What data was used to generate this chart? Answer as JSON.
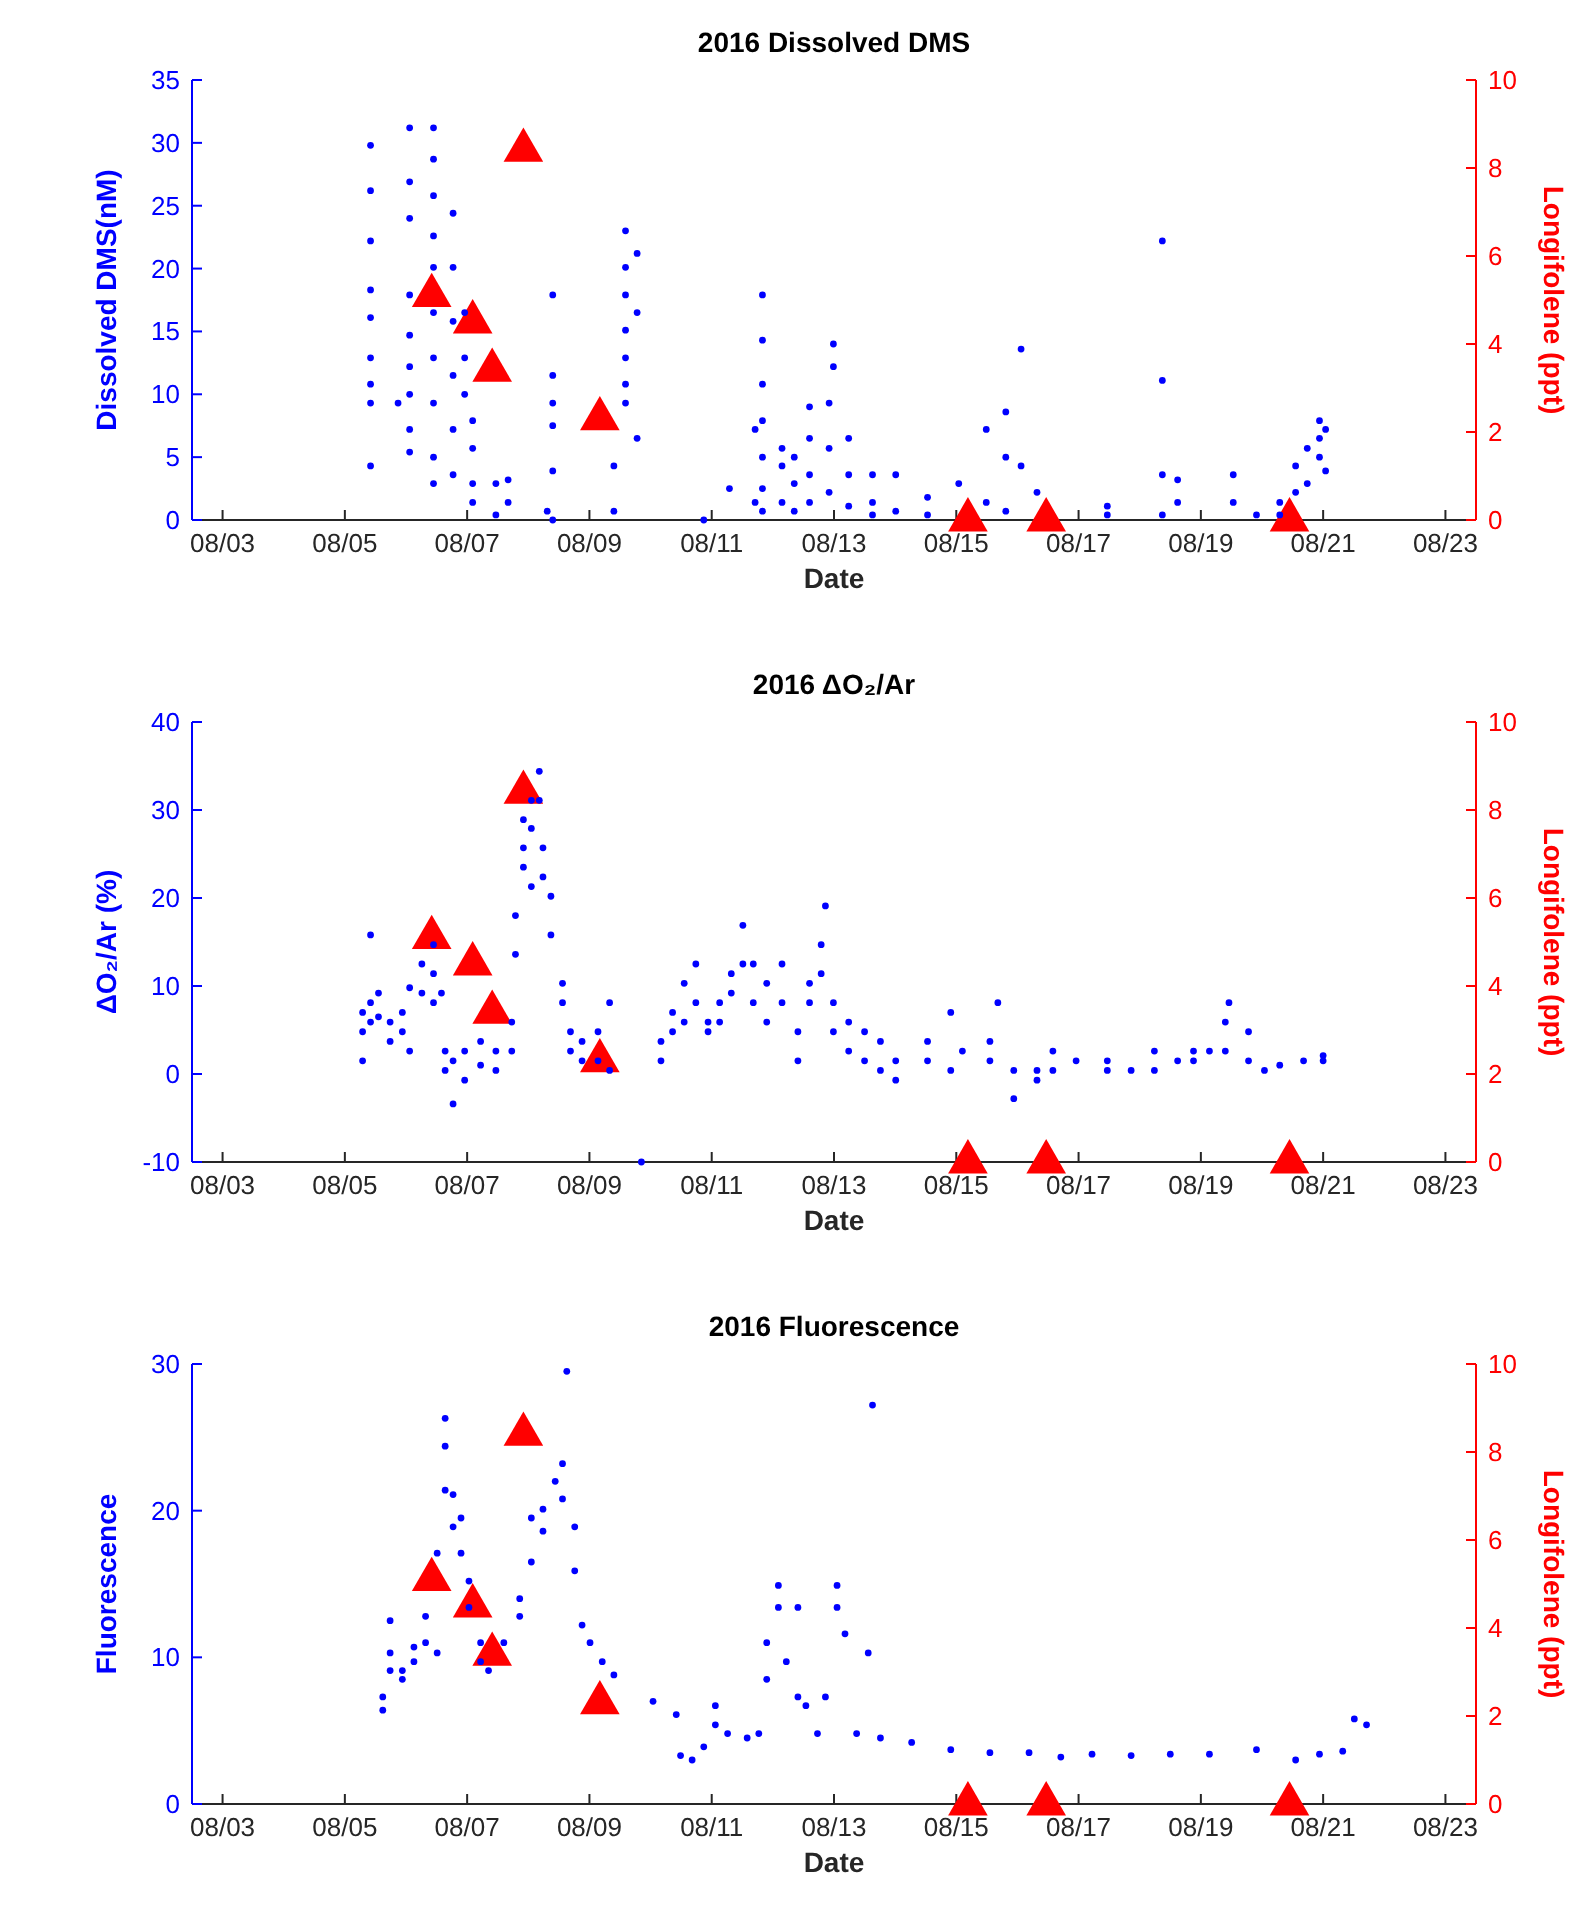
{
  "chart_data": [
    {
      "type": "scatter",
      "title": "2016 Dissolved DMS",
      "xlabel": "Date",
      "ylabel": "Dissolved DMS(nM)",
      "y2label": "Longifolene (ppt)",
      "xlim": [
        "2016-08-02T12:00",
        "2016-08-23T12:00"
      ],
      "xticks": [
        {
          "value": "2016-08-03",
          "label": "08/03"
        },
        {
          "value": "2016-08-05",
          "label": "08/05"
        },
        {
          "value": "2016-08-07",
          "label": "08/07"
        },
        {
          "value": "2016-08-09",
          "label": "08/09"
        },
        {
          "value": "2016-08-11",
          "label": "08/11"
        },
        {
          "value": "2016-08-13",
          "label": "08/13"
        },
        {
          "value": "2016-08-15",
          "label": "08/15"
        },
        {
          "value": "2016-08-17",
          "label": "08/17"
        },
        {
          "value": "2016-08-19",
          "label": "08/19"
        },
        {
          "value": "2016-08-21",
          "label": "08/21"
        },
        {
          "value": "2016-08-23",
          "label": "08/23"
        }
      ],
      "ylim": [
        0,
        35
      ],
      "yticks": [
        0,
        5,
        10,
        15,
        20,
        25,
        30,
        35
      ],
      "y2lim": [
        0,
        10
      ],
      "y2ticks": [
        0,
        2,
        4,
        6,
        8,
        10
      ],
      "series": [
        {
          "color": "#0000ff",
          "marker": "circle",
          "x": [
            "2016-08-05T10:05",
            "2016-08-05T10:05",
            "2016-08-05T10:05",
            "2016-08-05T10:05",
            "2016-08-05T10:05",
            "2016-08-05T10:05",
            "2016-08-05T10:05",
            "2016-08-05T10:05",
            "2016-08-05T10:05",
            "2016-08-05T20:53",
            "2016-08-06T01:26",
            "2016-08-06T01:26",
            "2016-08-06T01:26",
            "2016-08-06T01:26",
            "2016-08-06T01:26",
            "2016-08-06T01:26",
            "2016-08-06T01:26",
            "2016-08-06T01:26",
            "2016-08-06T01:26",
            "2016-08-06T10:48",
            "2016-08-06T10:48",
            "2016-08-06T10:48",
            "2016-08-06T10:48",
            "2016-08-06T10:48",
            "2016-08-06T10:48",
            "2016-08-06T10:48",
            "2016-08-06T10:48",
            "2016-08-06T10:48",
            "2016-08-06T10:48",
            "2016-08-06T18:29",
            "2016-08-06T18:29",
            "2016-08-06T18:29",
            "2016-08-06T18:29",
            "2016-08-06T18:29",
            "2016-08-06T18:29",
            "2016-08-06T23:02",
            "2016-08-06T23:02",
            "2016-08-06T23:02",
            "2016-08-07T02:10",
            "2016-08-07T02:10",
            "2016-08-07T02:10",
            "2016-08-07T02:10",
            "2016-08-07T11:17",
            "2016-08-07T11:17",
            "2016-08-07T16:05",
            "2016-08-07T16:05",
            "2016-08-08T07:26",
            "2016-08-08T09:36",
            "2016-08-08T09:36",
            "2016-08-08T09:36",
            "2016-08-08T09:36",
            "2016-08-08T09:36",
            "2016-08-08T09:36",
            "2016-08-09T09:36",
            "2016-08-09T09:36",
            "2016-08-09T14:10",
            "2016-08-09T14:10",
            "2016-08-09T14:10",
            "2016-08-09T14:10",
            "2016-08-09T14:10",
            "2016-08-09T14:10",
            "2016-08-09T14:10",
            "2016-08-09T18:43",
            "2016-08-09T18:43",
            "2016-08-09T18:43",
            "2016-08-10T20:53",
            "2016-08-11T06:58",
            "2016-08-11T17:02",
            "2016-08-11T17:02",
            "2016-08-11T19:55",
            "2016-08-11T19:55",
            "2016-08-11T19:55",
            "2016-08-11T19:55",
            "2016-08-11T19:55",
            "2016-08-11T19:55",
            "2016-08-11T19:55",
            "2016-08-12T03:36",
            "2016-08-12T03:36",
            "2016-08-12T03:36",
            "2016-08-12T08:24",
            "2016-08-12T08:24",
            "2016-08-12T08:24",
            "2016-08-12T14:24",
            "2016-08-12T14:24",
            "2016-08-12T14:24",
            "2016-08-12T14:24",
            "2016-08-12T22:05",
            "2016-08-12T22:05",
            "2016-08-12T22:05",
            "2016-08-12T23:46",
            "2016-08-12T23:46",
            "2016-08-13T05:46",
            "2016-08-13T05:46",
            "2016-08-13T05:46",
            "2016-08-13T15:07",
            "2016-08-13T15:07",
            "2016-08-13T15:07",
            "2016-08-14T00:14",
            "2016-08-14T00:14",
            "2016-08-14T12:43",
            "2016-08-14T12:43",
            "2016-08-15T00:58",
            "2016-08-15T11:46",
            "2016-08-15T11:46",
            "2016-08-15T19:26",
            "2016-08-15T19:26",
            "2016-08-15T19:26",
            "2016-08-16T01:26",
            "2016-08-16T01:26",
            "2016-08-16T07:41",
            "2016-08-17T11:17",
            "2016-08-17T11:17",
            "2016-08-18T08:53",
            "2016-08-18T08:53",
            "2016-08-18T08:53",
            "2016-08-18T08:53",
            "2016-08-18T14:53",
            "2016-08-18T14:53",
            "2016-08-19T12:43",
            "2016-08-19T12:43",
            "2016-08-19T21:50",
            "2016-08-20T06:58",
            "2016-08-20T06:58",
            "2016-08-20T13:12",
            "2016-08-20T13:12",
            "2016-08-20T17:46",
            "2016-08-20T17:46",
            "2016-08-20T22:34",
            "2016-08-20T22:34",
            "2016-08-20T22:34",
            "2016-08-21T00:58",
            "2016-08-21T00:58"
          ],
          "values": [
            29.8,
            26.2,
            22.2,
            18.3,
            16.1,
            12.9,
            10.8,
            9.3,
            4.3,
            9.3,
            31.2,
            26.9,
            24.0,
            17.9,
            14.7,
            12.2,
            10.0,
            7.2,
            5.4,
            31.2,
            28.7,
            25.8,
            22.6,
            20.1,
            16.5,
            12.9,
            9.3,
            5.0,
            2.9,
            24.4,
            20.1,
            15.8,
            11.5,
            7.2,
            3.6,
            16.5,
            12.9,
            10.0,
            7.9,
            5.7,
            2.9,
            1.4,
            2.9,
            0.4,
            3.2,
            1.4,
            0.7,
            17.9,
            11.5,
            9.3,
            7.5,
            3.9,
            0,
            4.3,
            0.7,
            23.0,
            20.1,
            17.9,
            15.1,
            12.9,
            10.8,
            9.3,
            21.2,
            16.5,
            6.5,
            0,
            2.5,
            7.2,
            1.4,
            17.9,
            14.3,
            10.8,
            7.9,
            5.0,
            2.5,
            0.7,
            5.7,
            4.3,
            1.4,
            5.0,
            2.9,
            0.7,
            9.0,
            6.5,
            3.6,
            1.4,
            9.3,
            5.7,
            2.2,
            14.0,
            12.2,
            6.5,
            3.6,
            1.1,
            3.6,
            1.4,
            0.4,
            3.6,
            0.7,
            1.8,
            0.4,
            2.9,
            7.2,
            1.4,
            8.6,
            5.0,
            0.7,
            13.6,
            4.3,
            2.2,
            1.1,
            0.4,
            22.2,
            11.1,
            3.6,
            0.4,
            3.2,
            1.4,
            3.6,
            1.4,
            0.4,
            1.4,
            0.4,
            4.3,
            2.2,
            5.7,
            2.9,
            7.9,
            6.5,
            5.0,
            7.2,
            3.9
          ]
        },
        {
          "color": "#ff0000",
          "marker": "triangle",
          "axis": "y2",
          "x": [
            "2016-08-06T10:05",
            "2016-08-07T02:10",
            "2016-08-07T09:50",
            "2016-08-07T22:05",
            "2016-08-09T04:05",
            "2016-08-15T04:34",
            "2016-08-16T11:17",
            "2016-08-20T10:48"
          ],
          "values": [
            5.1,
            4.5,
            3.4,
            8.4,
            2.3,
            0,
            0,
            0
          ]
        }
      ]
    },
    {
      "type": "scatter",
      "title": "2016 ΔO₂/Ar",
      "xlabel": "Date",
      "ylabel": "ΔO₂/Ar (%)",
      "y2label": "Longifolene (ppt)",
      "xlim": [
        "2016-08-02T12:00",
        "2016-08-23T12:00"
      ],
      "xticks": [
        {
          "value": "2016-08-03",
          "label": "08/03"
        },
        {
          "value": "2016-08-05",
          "label": "08/05"
        },
        {
          "value": "2016-08-07",
          "label": "08/07"
        },
        {
          "value": "2016-08-09",
          "label": "08/09"
        },
        {
          "value": "2016-08-11",
          "label": "08/11"
        },
        {
          "value": "2016-08-13",
          "label": "08/13"
        },
        {
          "value": "2016-08-15",
          "label": "08/15"
        },
        {
          "value": "2016-08-17",
          "label": "08/17"
        },
        {
          "value": "2016-08-19",
          "label": "08/19"
        },
        {
          "value": "2016-08-21",
          "label": "08/21"
        },
        {
          "value": "2016-08-23",
          "label": "08/23"
        }
      ],
      "ylim": [
        -10,
        40
      ],
      "yticks": [
        -10,
        0,
        10,
        20,
        30,
        40
      ],
      "y2lim": [
        0,
        10
      ],
      "y2ticks": [
        0,
        2,
        4,
        6,
        8,
        10
      ],
      "series": [
        {
          "color": "#0000ff",
          "marker": "circle",
          "x": [
            "2016-08-05T06:58",
            "2016-08-05T06:58",
            "2016-08-05T06:58",
            "2016-08-05T10:05",
            "2016-08-05T10:05",
            "2016-08-05T10:05",
            "2016-08-05T13:12",
            "2016-08-05T13:12",
            "2016-08-05T17:46",
            "2016-08-05T17:46",
            "2016-08-05T22:34",
            "2016-08-05T22:34",
            "2016-08-06T01:26",
            "2016-08-06T01:26",
            "2016-08-06T06:14",
            "2016-08-06T06:14",
            "2016-08-06T10:48",
            "2016-08-06T10:48",
            "2016-08-06T10:48",
            "2016-08-06T13:55",
            "2016-08-06T15:22",
            "2016-08-06T15:22",
            "2016-08-06T18:29",
            "2016-08-06T18:29",
            "2016-08-06T23:02",
            "2016-08-06T23:02",
            "2016-08-07T05:17",
            "2016-08-07T05:17",
            "2016-08-07T11:17",
            "2016-08-07T11:17",
            "2016-08-07T17:31",
            "2016-08-07T17:31",
            "2016-08-07T18:58",
            "2016-08-07T18:58",
            "2016-08-07T22:05",
            "2016-08-07T22:05",
            "2016-08-07T22:05",
            "2016-08-08T01:12",
            "2016-08-08T01:12",
            "2016-08-08T01:12",
            "2016-08-08T04:19",
            "2016-08-08T04:19",
            "2016-08-08T05:46",
            "2016-08-08T05:46",
            "2016-08-08T08:53",
            "2016-08-08T08:53",
            "2016-08-08T13:26",
            "2016-08-08T13:26",
            "2016-08-08T16:34",
            "2016-08-08T16:34",
            "2016-08-08T21:07",
            "2016-08-08T21:07",
            "2016-08-09T03:22",
            "2016-08-09T03:22",
            "2016-08-09T07:55",
            "2016-08-09T07:55",
            "2016-08-09T20:24",
            "2016-08-10T04:05",
            "2016-08-10T04:05",
            "2016-08-10T08:38",
            "2016-08-10T08:38",
            "2016-08-10T13:12",
            "2016-08-10T13:12",
            "2016-08-10T17:46",
            "2016-08-10T17:46",
            "2016-08-10T22:34",
            "2016-08-10T22:34",
            "2016-08-11T03:07",
            "2016-08-11T03:07",
            "2016-08-11T07:41",
            "2016-08-11T07:41",
            "2016-08-11T12:14",
            "2016-08-11T12:14",
            "2016-08-11T16:19",
            "2016-08-11T16:19",
            "2016-08-11T21:36",
            "2016-08-11T21:36",
            "2016-08-12T03:36",
            "2016-08-12T03:36",
            "2016-08-12T09:50",
            "2016-08-12T09:50",
            "2016-08-12T14:24",
            "2016-08-12T14:24",
            "2016-08-12T18:58",
            "2016-08-12T18:58",
            "2016-08-12T20:38",
            "2016-08-12T23:46",
            "2016-08-12T23:46",
            "2016-08-13T05:46",
            "2016-08-13T05:46",
            "2016-08-13T12:00",
            "2016-08-13T12:00",
            "2016-08-13T18:14",
            "2016-08-13T18:14",
            "2016-08-14T00:14",
            "2016-08-14T00:14",
            "2016-08-14T12:43",
            "2016-08-14T12:43",
            "2016-08-14T21:50",
            "2016-08-14T21:50",
            "2016-08-15T02:24",
            "2016-08-15T13:12",
            "2016-08-15T13:12",
            "2016-08-15T16:19",
            "2016-08-15T22:34",
            "2016-08-15T22:34",
            "2016-08-16T07:41",
            "2016-08-16T07:41",
            "2016-08-16T13:55",
            "2016-08-16T13:55",
            "2016-08-16T23:02",
            "2016-08-17T11:17",
            "2016-08-17T11:17",
            "2016-08-17T20:38",
            "2016-08-18T05:46",
            "2016-08-18T05:46",
            "2016-08-18T14:53",
            "2016-08-18T21:07",
            "2016-08-18T21:07",
            "2016-08-19T03:22",
            "2016-08-19T09:36",
            "2016-08-19T09:36",
            "2016-08-19T11:02",
            "2016-08-19T18:43",
            "2016-08-19T18:43",
            "2016-08-20T00:58",
            "2016-08-20T06:58",
            "2016-08-20T16:19",
            "2016-08-21T00:00",
            "2016-08-21T00:00"
          ],
          "values": [
            1.5,
            4.8,
            7.0,
            8.1,
            15.8,
            5.9,
            9.2,
            6.5,
            5.9,
            3.7,
            7.0,
            4.8,
            9.8,
            2.6,
            12.5,
            9.2,
            14.7,
            11.4,
            8.1,
            9.2,
            2.6,
            0.4,
            -3.4,
            1.5,
            2.6,
            -0.7,
            3.7,
            1.0,
            0.4,
            2.6,
            5.9,
            2.6,
            13.6,
            18.0,
            28.9,
            25.7,
            23.5,
            31.1,
            27.9,
            21.3,
            34.4,
            31.1,
            25.7,
            22.4,
            20.2,
            15.8,
            10.3,
            8.1,
            4.8,
            2.6,
            3.7,
            1.5,
            4.8,
            1.5,
            8.1,
            0.4,
            -10.0,
            3.7,
            1.5,
            7.0,
            4.8,
            10.3,
            5.9,
            12.5,
            8.1,
            5.9,
            4.8,
            8.1,
            5.9,
            9.2,
            11.4,
            16.9,
            12.5,
            12.5,
            8.1,
            10.3,
            5.9,
            12.5,
            8.1,
            1.5,
            4.8,
            8.1,
            10.3,
            11.4,
            14.7,
            19.1,
            8.1,
            4.8,
            5.9,
            2.6,
            4.8,
            1.5,
            3.7,
            0.4,
            1.5,
            -0.7,
            1.5,
            3.7,
            7.0,
            0.4,
            2.6,
            3.7,
            1.5,
            8.1,
            0.4,
            -2.8,
            -0.7,
            0.4,
            2.6,
            0.4,
            1.5,
            0.4,
            1.5,
            0.4,
            2.6,
            0.4,
            1.5,
            1.5,
            2.6,
            2.6,
            5.9,
            2.6,
            8.1,
            1.5,
            4.8,
            0.4,
            1.0,
            1.5,
            2.1,
            1.5
          ]
        },
        {
          "color": "#ff0000",
          "marker": "triangle",
          "axis": "y2",
          "x": [
            "2016-08-06T10:05",
            "2016-08-07T02:10",
            "2016-08-07T09:50",
            "2016-08-07T22:05",
            "2016-08-09T04:05",
            "2016-08-15T04:34",
            "2016-08-16T11:17",
            "2016-08-20T10:48"
          ],
          "values": [
            5.1,
            4.5,
            3.4,
            8.4,
            2.3,
            0,
            0,
            0
          ]
        }
      ]
    },
    {
      "type": "scatter",
      "title": "2016 Fluorescence",
      "xlabel": "Date",
      "ylabel": "Fluorescence",
      "y2label": "Longifolene (ppt)",
      "xlim": [
        "2016-08-02T12:00",
        "2016-08-23T12:00"
      ],
      "xticks": [
        {
          "value": "2016-08-03",
          "label": "08/03"
        },
        {
          "value": "2016-08-05",
          "label": "08/05"
        },
        {
          "value": "2016-08-07",
          "label": "08/07"
        },
        {
          "value": "2016-08-09",
          "label": "08/09"
        },
        {
          "value": "2016-08-11",
          "label": "08/11"
        },
        {
          "value": "2016-08-13",
          "label": "08/13"
        },
        {
          "value": "2016-08-15",
          "label": "08/15"
        },
        {
          "value": "2016-08-17",
          "label": "08/17"
        },
        {
          "value": "2016-08-19",
          "label": "08/19"
        },
        {
          "value": "2016-08-21",
          "label": "08/21"
        },
        {
          "value": "2016-08-23",
          "label": "08/23"
        }
      ],
      "ylim": [
        0,
        30
      ],
      "yticks": [
        0,
        10,
        20,
        30
      ],
      "y2lim": [
        0,
        10
      ],
      "y2ticks": [
        0,
        2,
        4,
        6,
        8,
        10
      ],
      "series": [
        {
          "color": "#0000ff",
          "marker": "circle",
          "x": [
            "2016-08-05T14:53",
            "2016-08-05T14:53",
            "2016-08-05T17:46",
            "2016-08-05T17:46",
            "2016-08-05T17:46",
            "2016-08-05T22:34",
            "2016-08-05T22:34",
            "2016-08-06T03:07",
            "2016-08-06T03:07",
            "2016-08-06T07:41",
            "2016-08-06T07:41",
            "2016-08-06T12:14",
            "2016-08-06T12:14",
            "2016-08-06T15:22",
            "2016-08-06T15:22",
            "2016-08-06T15:22",
            "2016-08-06T18:29",
            "2016-08-06T18:29",
            "2016-08-06T21:36",
            "2016-08-06T21:36",
            "2016-08-07T00:43",
            "2016-08-07T00:43",
            "2016-08-07T05:17",
            "2016-08-07T05:17",
            "2016-08-07T08:24",
            "2016-08-07T14:24",
            "2016-08-07T20:38",
            "2016-08-07T20:38",
            "2016-08-08T01:12",
            "2016-08-08T01:12",
            "2016-08-08T05:46",
            "2016-08-08T05:46",
            "2016-08-08T10:34",
            "2016-08-08T13:26",
            "2016-08-08T13:26",
            "2016-08-08T15:07",
            "2016-08-08T18:14",
            "2016-08-08T18:14",
            "2016-08-08T21:07",
            "2016-08-09T00:14",
            "2016-08-09T05:02",
            "2016-08-09T09:36",
            "2016-08-10T00:58",
            "2016-08-10T10:05",
            "2016-08-10T11:46",
            "2016-08-10T16:19",
            "2016-08-10T20:53",
            "2016-08-11T01:26",
            "2016-08-11T01:26",
            "2016-08-11T06:14",
            "2016-08-11T13:55",
            "2016-08-11T18:29",
            "2016-08-11T21:36",
            "2016-08-11T21:36",
            "2016-08-12T02:10",
            "2016-08-12T02:10",
            "2016-08-12T05:17",
            "2016-08-12T09:50",
            "2016-08-12T09:50",
            "2016-08-12T12:58",
            "2016-08-12T17:31",
            "2016-08-12T20:38",
            "2016-08-13T01:12",
            "2016-08-13T01:12",
            "2016-08-13T04:19",
            "2016-08-13T08:53",
            "2016-08-13T13:26",
            "2016-08-13T15:07",
            "2016-08-13T18:14",
            "2016-08-14T06:29",
            "2016-08-14T21:50",
            "2016-08-15T13:12",
            "2016-08-16T04:34",
            "2016-08-16T17:02",
            "2016-08-17T05:17",
            "2016-08-17T20:38",
            "2016-08-18T12:00",
            "2016-08-19T03:22",
            "2016-08-19T21:50",
            "2016-08-20T13:12",
            "2016-08-20T22:34",
            "2016-08-21T07:41",
            "2016-08-21T12:14",
            "2016-08-21T17:02"
          ],
          "values": [
            6.4,
            7.3,
            9.1,
            10.3,
            12.5,
            9.1,
            8.5,
            9.7,
            10.7,
            11.0,
            12.8,
            10.3,
            17.1,
            26.3,
            24.4,
            21.4,
            21.1,
            18.9,
            19.5,
            17.1,
            15.2,
            13.4,
            11.0,
            9.7,
            9.1,
            11.0,
            12.8,
            14.0,
            16.5,
            19.5,
            18.6,
            20.1,
            22.0,
            23.2,
            20.8,
            29.5,
            18.9,
            15.9,
            12.2,
            11.0,
            9.7,
            8.8,
            7.0,
            6.1,
            3.3,
            3.0,
            3.9,
            5.4,
            6.7,
            4.8,
            4.5,
            4.8,
            8.5,
            11.0,
            14.9,
            13.4,
            9.7,
            13.4,
            7.3,
            6.7,
            4.8,
            7.3,
            14.9,
            13.4,
            11.6,
            4.8,
            10.3,
            27.2,
            4.5,
            4.2,
            3.7,
            3.5,
            3.5,
            3.2,
            3.4,
            3.3,
            3.4,
            3.4,
            3.7,
            3.0,
            3.4,
            3.6,
            5.8,
            5.4
          ]
        },
        {
          "color": "#ff0000",
          "marker": "triangle",
          "axis": "y2",
          "x": [
            "2016-08-06T10:05",
            "2016-08-07T02:10",
            "2016-08-07T09:50",
            "2016-08-07T22:05",
            "2016-08-09T04:05",
            "2016-08-15T04:34",
            "2016-08-16T11:17",
            "2016-08-20T10:48"
          ],
          "values": [
            5.1,
            4.5,
            3.4,
            8.4,
            2.3,
            0,
            0,
            0
          ]
        }
      ]
    }
  ]
}
